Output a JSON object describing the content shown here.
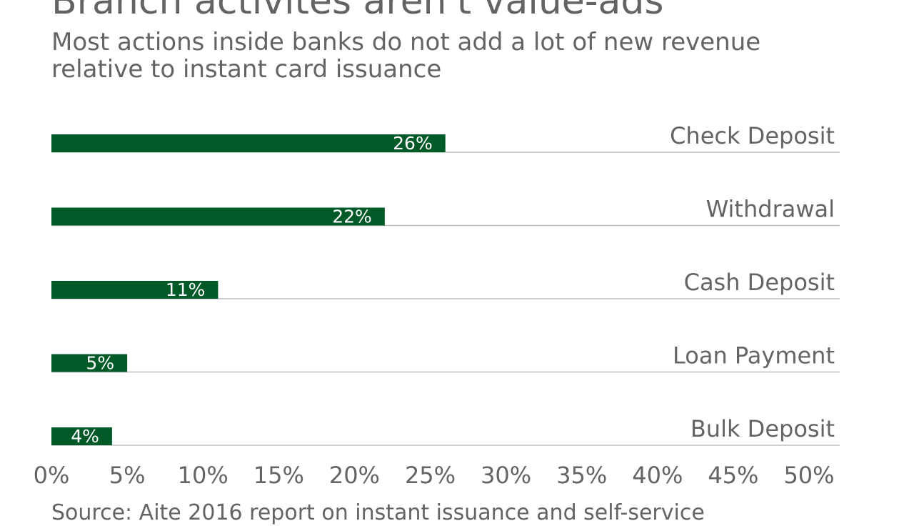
{
  "header": {
    "title": "Branch activites aren't value-ads",
    "subtitle": "Most actions inside banks do not add a lot of new revenue relative to instant card issuance"
  },
  "footer": {
    "source": "Source: Aite 2016 report on instant issuance and self-service"
  },
  "colors": {
    "bar": "#005a28",
    "text": "#646464",
    "axis_line": "#bfbfbf",
    "bar_label": "#ffffff"
  },
  "chart_data": {
    "type": "bar",
    "orientation": "horizontal",
    "categories": [
      "Check Deposit",
      "Withdrawal",
      "Cash Deposit",
      "Loan Payment",
      "Bulk Deposit"
    ],
    "values": [
      26,
      22,
      11,
      5,
      4
    ],
    "data_labels": [
      "26%",
      "22%",
      "11%",
      "5%",
      "4%"
    ],
    "xlim": [
      0,
      50
    ],
    "x_ticks": [
      0,
      5,
      10,
      15,
      20,
      25,
      30,
      35,
      40,
      45,
      50
    ],
    "x_tick_labels": [
      "0%",
      "5%",
      "10%",
      "15%",
      "20%",
      "25%",
      "30%",
      "35%",
      "40%",
      "45%",
      "50%"
    ],
    "category_label_position": "right",
    "grid": false,
    "legend": "none"
  }
}
